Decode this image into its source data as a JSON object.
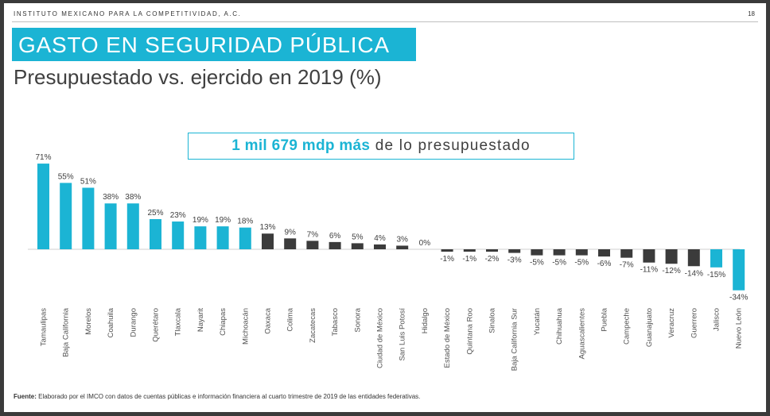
{
  "header": {
    "org": "INSTITUTO MEXICANO PARA LA COMPETITIVIDAD, A.C.",
    "page": "18"
  },
  "title": "GASTO EN SEGURIDAD PÚBLICA",
  "subtitle": "Presupuestado vs. ejercido en 2019 (%)",
  "callout": {
    "highlight": "1 mil 679 mdp más",
    "rest": "de lo presupuestado"
  },
  "footer": {
    "label": "Fuente:",
    "text": "Elaborado por el IMCO con datos de cuentas públicas e información financiera al cuarto trimestre de 2019 de las entidades federativas."
  },
  "colors": {
    "accent": "#1bb4d4",
    "dark": "#3b3b3b"
  },
  "chart_data": {
    "type": "bar",
    "categories": [
      "Tamaulipas",
      "Baja California",
      "Morelos",
      "Coahuila",
      "Durango",
      "Querétaro",
      "Tlaxcala",
      "Nayarit",
      "Chiapas",
      "Michoacán",
      "Oaxaca",
      "Colima",
      "Zacatecas",
      "Tabasco",
      "Sonora",
      "Ciudad de México",
      "San Luis Potosí",
      "Hidalgo",
      "Estado de México",
      "Quintana Roo",
      "Sinaloa",
      "Baja California Sur",
      "Yucatán",
      "Chihuahua",
      "Aguascalientes",
      "Puebla",
      "Campeche",
      "Guanajuato",
      "Veracruz",
      "Guerrero",
      "Jalisco",
      "Nuevo León"
    ],
    "values": [
      71,
      55,
      51,
      38,
      38,
      25,
      23,
      19,
      19,
      18,
      13,
      9,
      7,
      6,
      5,
      4,
      3,
      0,
      -1,
      -1,
      -2,
      -3,
      -5,
      -5,
      -5,
      -6,
      -7,
      -11,
      -12,
      -14,
      -15,
      -34
    ],
    "labels": [
      "71%",
      "55%",
      "51%",
      "38%",
      "38%",
      "25%",
      "23%",
      "19%",
      "19%",
      "18%",
      "13%",
      "9%",
      "7%",
      "6%",
      "5%",
      "4%",
      "3%",
      "0%",
      "-1%",
      "-1%",
      "-2%",
      "-3%",
      "-5%",
      "-5%",
      "-5%",
      "-6%",
      "-7%",
      "-11%",
      "-12%",
      "-14%",
      "-15%",
      "-34%"
    ],
    "bar_colors": [
      "accent",
      "accent",
      "accent",
      "accent",
      "accent",
      "accent",
      "accent",
      "accent",
      "accent",
      "accent",
      "dark",
      "dark",
      "dark",
      "dark",
      "dark",
      "dark",
      "dark",
      "dark",
      "dark",
      "dark",
      "dark",
      "dark",
      "dark",
      "dark",
      "dark",
      "dark",
      "dark",
      "dark",
      "dark",
      "dark",
      "accent",
      "accent"
    ],
    "xlabel": "",
    "ylabel": "",
    "title": ""
  }
}
